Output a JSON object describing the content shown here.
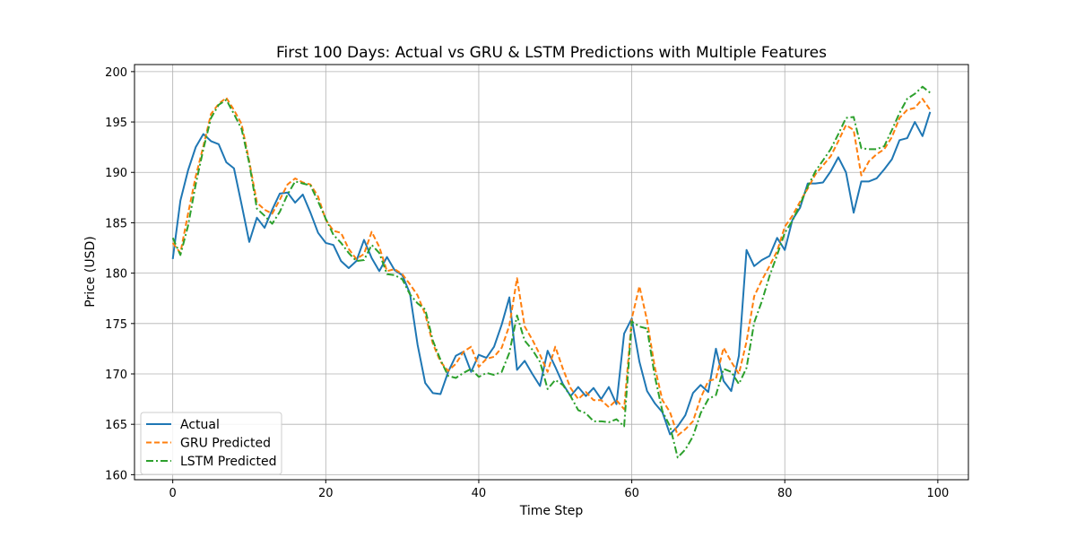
{
  "chart_data": {
    "type": "line",
    "title": "First 100 Days: Actual vs GRU & LSTM Predictions with Multiple Features",
    "xlabel": "Time Step",
    "ylabel": "Price (USD)",
    "xlim": [
      -5,
      104
    ],
    "ylim": [
      159.5,
      200.7
    ],
    "xticks": [
      0,
      20,
      40,
      60,
      80,
      100
    ],
    "yticks": [
      160,
      165,
      170,
      175,
      180,
      185,
      190,
      195,
      200
    ],
    "grid": true,
    "legend": "lower-left",
    "x": [
      0,
      1,
      2,
      3,
      4,
      5,
      6,
      7,
      8,
      9,
      10,
      11,
      12,
      13,
      14,
      15,
      16,
      17,
      18,
      19,
      20,
      21,
      22,
      23,
      24,
      25,
      26,
      27,
      28,
      29,
      30,
      31,
      32,
      33,
      34,
      35,
      36,
      37,
      38,
      39,
      40,
      41,
      42,
      43,
      44,
      45,
      46,
      47,
      48,
      49,
      50,
      51,
      52,
      53,
      54,
      55,
      56,
      57,
      58,
      59,
      60,
      61,
      62,
      63,
      64,
      65,
      66,
      67,
      68,
      69,
      70,
      71,
      72,
      73,
      74,
      75,
      76,
      77,
      78,
      79,
      80,
      81,
      82,
      83,
      84,
      85,
      86,
      87,
      88,
      89,
      90,
      91,
      92,
      93,
      94,
      95,
      96,
      97,
      98,
      99
    ],
    "series": [
      {
        "name": "Actual",
        "color": "#1f77b4",
        "dash": "solid",
        "values": [
          181.4,
          187.2,
          190.2,
          192.5,
          193.8,
          193.1,
          192.8,
          191.0,
          190.4,
          186.8,
          183.1,
          185.5,
          184.5,
          186.3,
          187.9,
          188.0,
          187.0,
          187.8,
          186.0,
          184.0,
          183.0,
          182.8,
          181.2,
          180.5,
          181.2,
          183.3,
          181.5,
          180.2,
          181.6,
          180.3,
          179.8,
          178.0,
          172.9,
          169.1,
          168.1,
          168.0,
          170.2,
          171.8,
          172.2,
          170.2,
          171.9,
          171.6,
          172.7,
          174.9,
          177.6,
          170.4,
          171.3,
          170.0,
          168.8,
          172.3,
          170.7,
          169.0,
          167.8,
          168.7,
          167.8,
          168.6,
          167.5,
          168.7,
          167.0,
          174.0,
          175.5,
          171.2,
          168.3,
          167.1,
          166.2,
          164.0,
          164.8,
          165.9,
          168.1,
          168.9,
          168.2,
          172.5,
          169.3,
          168.3,
          171.8,
          182.3,
          180.7,
          181.3,
          181.7,
          183.5,
          182.3,
          185.3,
          186.5,
          188.9,
          188.9,
          189.0,
          190.1,
          191.5,
          190.0,
          186.0,
          189.1,
          189.1,
          189.4,
          190.3,
          191.3,
          193.2,
          193.4,
          195.0,
          193.6,
          196.0
        ]
      },
      {
        "name": "GRU Predicted",
        "color": "#ff7f0e",
        "dash": "dashed",
        "values": [
          183.0,
          182.0,
          185.9,
          189.6,
          192.6,
          195.8,
          196.8,
          197.4,
          196.2,
          194.8,
          191.1,
          187.0,
          186.3,
          185.9,
          187.3,
          188.8,
          189.4,
          189.0,
          188.8,
          187.6,
          185.3,
          184.2,
          184.0,
          182.4,
          181.4,
          181.9,
          184.1,
          182.6,
          180.2,
          180.4,
          179.9,
          178.9,
          177.8,
          175.9,
          173.0,
          171.2,
          170.3,
          171.0,
          172.2,
          172.7,
          170.7,
          171.5,
          171.7,
          172.6,
          174.8,
          179.5,
          174.7,
          173.4,
          171.9,
          170.2,
          172.7,
          170.5,
          168.6,
          167.5,
          168.2,
          167.4,
          167.4,
          166.7,
          167.4,
          166.5,
          175.5,
          178.7,
          175.3,
          170.7,
          167.4,
          166.2,
          163.9,
          164.5,
          165.3,
          167.6,
          169.3,
          169.5,
          172.6,
          171.2,
          170.0,
          173.2,
          177.7,
          179.3,
          180.7,
          182.2,
          184.6,
          185.7,
          187.1,
          188.4,
          189.8,
          190.7,
          191.6,
          193.1,
          194.7,
          194.2,
          189.7,
          191.1,
          191.8,
          192.3,
          193.5,
          195.4,
          196.2,
          196.4,
          197.3,
          196.2
        ]
      },
      {
        "name": "LSTM Predicted",
        "color": "#2ca02c",
        "dash": "dashdot",
        "values": [
          183.5,
          181.8,
          184.7,
          188.8,
          192.3,
          195.4,
          196.7,
          197.2,
          195.8,
          194.3,
          190.9,
          186.4,
          185.7,
          184.9,
          186.1,
          187.8,
          189.1,
          188.9,
          188.7,
          187.1,
          185.4,
          183.8,
          183.0,
          182.0,
          181.2,
          181.3,
          182.8,
          182.0,
          179.9,
          179.8,
          179.4,
          177.9,
          177.0,
          176.4,
          173.3,
          171.4,
          169.8,
          169.6,
          170.1,
          170.5,
          169.7,
          170.1,
          169.9,
          170.2,
          172.1,
          175.8,
          173.3,
          172.4,
          171.2,
          168.5,
          169.4,
          168.9,
          167.8,
          166.4,
          166.1,
          165.3,
          165.3,
          165.2,
          165.5,
          164.8,
          175.2,
          174.7,
          174.5,
          169.8,
          166.3,
          164.8,
          161.7,
          162.5,
          163.8,
          166.1,
          167.5,
          167.9,
          170.5,
          170.2,
          169.0,
          170.6,
          175.1,
          177.2,
          179.7,
          181.8,
          184.0,
          185.2,
          186.8,
          188.6,
          190.1,
          191.2,
          192.3,
          193.8,
          195.4,
          195.5,
          192.4,
          192.3,
          192.3,
          192.6,
          194.2,
          195.9,
          197.3,
          197.8,
          198.5,
          197.9
        ]
      }
    ]
  }
}
